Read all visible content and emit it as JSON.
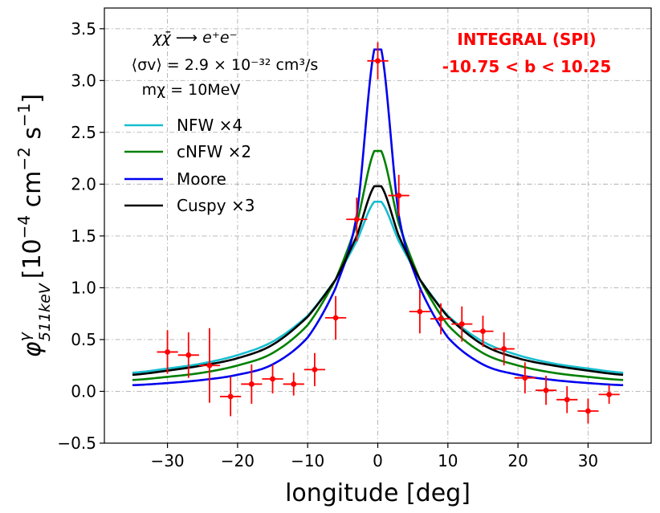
{
  "chart_data": {
    "type": "line",
    "xlabel": "longitude [deg]",
    "ylabel": "φ^γ_511keV [10^-4 cm^-2 s^-1]",
    "ylabel_parts": {
      "sym": "φ",
      "sup": "γ",
      "sub": "511keV",
      "unit_pre": "[10",
      "unit_exp1": "−4",
      "unit_mid": " cm",
      "unit_exp2": "−2",
      "unit_mid2": " s",
      "unit_exp3": "−1",
      "unit_post": "]"
    },
    "xlim": [
      -39,
      39
    ],
    "ylim": [
      -0.5,
      3.7
    ],
    "xticks": [
      -30,
      -20,
      -10,
      0,
      10,
      20,
      30
    ],
    "xtick_labels": [
      "−30",
      "−20",
      "−10",
      "0",
      "10",
      "20",
      "30"
    ],
    "yticks": [
      -0.5,
      0.0,
      0.5,
      1.0,
      1.5,
      2.0,
      2.5,
      3.0,
      3.5
    ],
    "ytick_labels": [
      "−0.5",
      "0.0",
      "0.5",
      "1.0",
      "1.5",
      "2.0",
      "2.5",
      "3.0",
      "3.5"
    ],
    "grid": true,
    "legend_position": "upper-left",
    "annotation_process": "χχ̄ ⟶ e⁺e⁻",
    "annotation_sigma": "⟨σv⟩ = 2.9 × 10⁻³² cm³/s",
    "annotation_mass": "mχ = 10MeV",
    "instrument": "INTEGRAL (SPI)",
    "latitude_range": "-10.75  <  b  <  10.25",
    "instrument_color": "#ff0000",
    "series": [
      {
        "name": "NFW ×4",
        "color": "#17becf",
        "peak": 1.83,
        "x": [
          -35,
          -30,
          -25,
          -20,
          -15,
          -10,
          -6,
          -3,
          0,
          3,
          6,
          10,
          15,
          20,
          25,
          30,
          35
        ],
        "values": [
          0.18,
          0.22,
          0.27,
          0.35,
          0.48,
          0.73,
          1.08,
          1.45,
          1.83,
          1.45,
          1.08,
          0.73,
          0.48,
          0.35,
          0.27,
          0.22,
          0.18
        ]
      },
      {
        "name": "cNFW ×2",
        "color": "#008000",
        "peak": 2.32,
        "x": [
          -35,
          -30,
          -25,
          -20,
          -15,
          -10,
          -6,
          -3,
          0,
          3,
          6,
          10,
          15,
          20,
          25,
          30,
          35
        ],
        "values": [
          0.11,
          0.14,
          0.18,
          0.25,
          0.37,
          0.64,
          1.08,
          1.62,
          2.32,
          1.62,
          1.08,
          0.64,
          0.37,
          0.25,
          0.18,
          0.14,
          0.11
        ]
      },
      {
        "name": "Moore",
        "color": "#0000ee",
        "peak": 3.3,
        "x": [
          -35,
          -30,
          -25,
          -20,
          -15,
          -10,
          -6,
          -3,
          0,
          3,
          6,
          10,
          15,
          20,
          25,
          30,
          35
        ],
        "values": [
          0.06,
          0.08,
          0.11,
          0.16,
          0.26,
          0.52,
          1.0,
          1.7,
          3.3,
          1.7,
          1.0,
          0.52,
          0.26,
          0.16,
          0.11,
          0.08,
          0.06
        ]
      },
      {
        "name": "Cuspy ×3",
        "color": "#000000",
        "peak": 1.98,
        "x": [
          -35,
          -30,
          -25,
          -20,
          -15,
          -10,
          -6,
          -3,
          0,
          3,
          6,
          10,
          15,
          20,
          25,
          30,
          35
        ],
        "values": [
          0.16,
          0.2,
          0.25,
          0.32,
          0.45,
          0.72,
          1.08,
          1.5,
          1.98,
          1.5,
          1.08,
          0.72,
          0.45,
          0.32,
          0.25,
          0.2,
          0.16
        ]
      }
    ],
    "data_points": {
      "name": "INTEGRAL (SPI) data",
      "color": "#ff0000",
      "x_halfwidth": 1.5,
      "points": [
        {
          "x": -30.0,
          "y": 0.38,
          "yerr": 0.21
        },
        {
          "x": -27.0,
          "y": 0.35,
          "yerr": 0.22
        },
        {
          "x": -24.0,
          "y": 0.25,
          "yerr": 0.36
        },
        {
          "x": -21.0,
          "y": -0.05,
          "yerr": 0.19
        },
        {
          "x": -18.0,
          "y": 0.07,
          "yerr": 0.19
        },
        {
          "x": -15.0,
          "y": 0.12,
          "yerr": 0.14
        },
        {
          "x": -12.0,
          "y": 0.07,
          "yerr": 0.11
        },
        {
          "x": -9.0,
          "y": 0.21,
          "yerr": 0.16
        },
        {
          "x": -6.0,
          "y": 0.71,
          "yerr": 0.21
        },
        {
          "x": -3.0,
          "y": 1.66,
          "yerr": 0.21
        },
        {
          "x": 0.0,
          "y": 3.19,
          "yerr": 0.18
        },
        {
          "x": 3.0,
          "y": 1.89,
          "yerr": 0.2
        },
        {
          "x": 6.0,
          "y": 0.77,
          "yerr": 0.21
        },
        {
          "x": 9.0,
          "y": 0.7,
          "yerr": 0.15
        },
        {
          "x": 12.0,
          "y": 0.65,
          "yerr": 0.17
        },
        {
          "x": 15.0,
          "y": 0.58,
          "yerr": 0.15
        },
        {
          "x": 18.0,
          "y": 0.41,
          "yerr": 0.16
        },
        {
          "x": 21.0,
          "y": 0.13,
          "yerr": 0.15
        },
        {
          "x": 24.0,
          "y": 0.01,
          "yerr": 0.14
        },
        {
          "x": 27.0,
          "y": -0.08,
          "yerr": 0.13
        },
        {
          "x": 30.0,
          "y": -0.19,
          "yerr": 0.12
        },
        {
          "x": 33.0,
          "y": -0.03,
          "yerr": 0.09
        }
      ]
    }
  }
}
